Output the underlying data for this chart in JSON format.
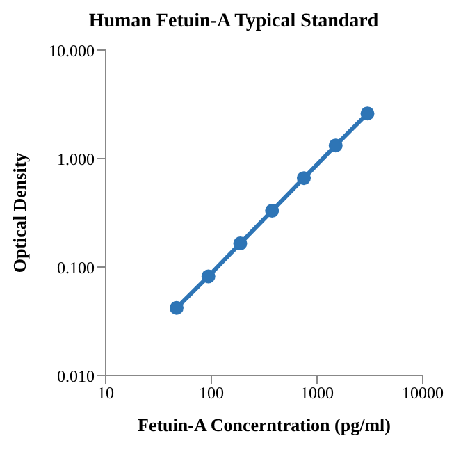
{
  "chart_data": {
    "type": "line",
    "title": "Human Fetuin-A Typical Standard",
    "xlabel": "Fetuin-A Concerntration (pg/ml)",
    "ylabel": "Optical Density",
    "x": [
      46.875,
      93.75,
      187.5,
      375,
      750,
      1500,
      3000
    ],
    "series": [
      {
        "color": "#2e75b6",
        "values": [
          0.042,
          0.082,
          0.165,
          0.33,
          0.66,
          1.32,
          2.6
        ]
      }
    ],
    "log": "xy",
    "xlim": [
      10,
      10000
    ],
    "xticks": [
      10,
      100,
      1000,
      10000
    ],
    "ylim": [
      0.01,
      10
    ],
    "yticks": [
      {
        "value": 0.01,
        "label": "0.010"
      },
      {
        "value": 0.1,
        "label": "0.100"
      },
      {
        "value": 1,
        "label": "1.000"
      },
      {
        "value": 10,
        "label": "10.000"
      }
    ],
    "marker": "circle",
    "line_style": "solid",
    "grid": false,
    "legend": false
  }
}
